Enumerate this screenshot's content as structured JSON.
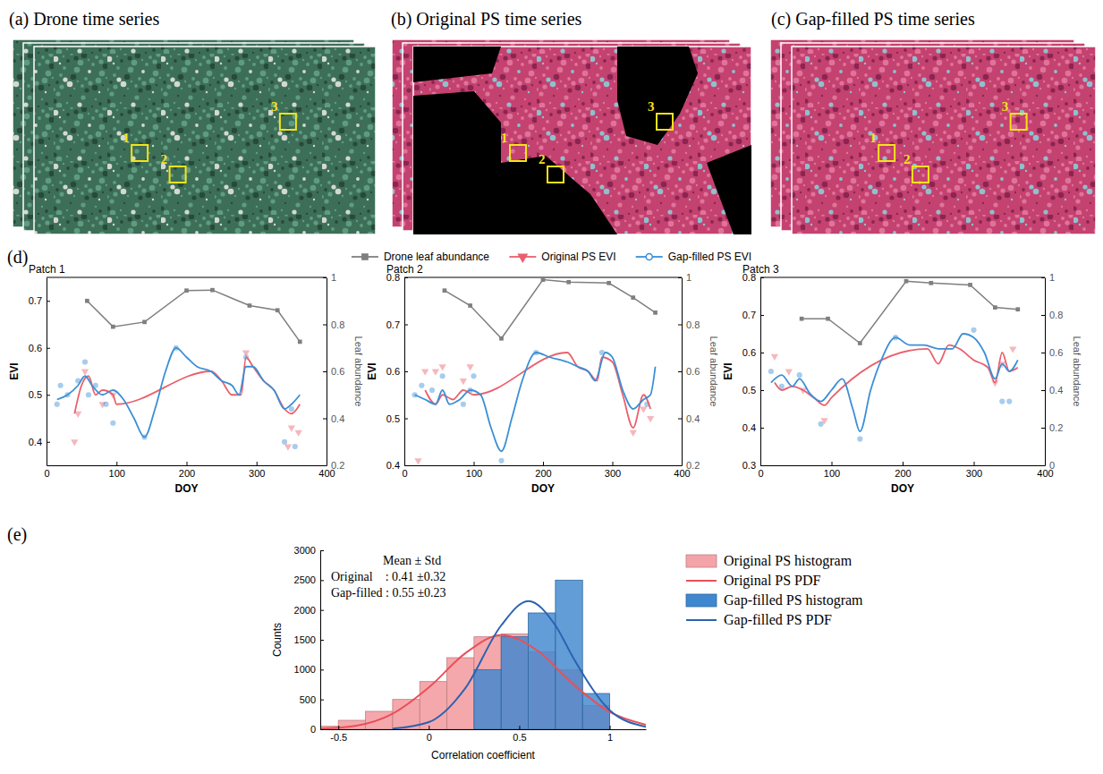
{
  "figure": {
    "images": [
      {
        "title": "(a) Drone time series",
        "patches": [
          "1",
          "2",
          "3"
        ]
      },
      {
        "title": "(b) Original PS time series",
        "patches": [
          "1",
          "2",
          "3"
        ]
      },
      {
        "title": "(c) Gap-filled PS time series",
        "patches": [
          "1",
          "2",
          "3"
        ]
      }
    ],
    "labels": [
      "(d)",
      "(e)"
    ]
  },
  "chart_data": [
    {
      "type": "line",
      "title": "Patch 1",
      "x_label": "DOY",
      "y_label": "EVI",
      "y2_label": "Leaf abundance",
      "xlim": [
        0,
        400
      ],
      "xticks": [
        0,
        100,
        200,
        300,
        400
      ],
      "ylim": [
        0.35,
        0.75
      ],
      "yticks": [
        0.4,
        0.5,
        0.6,
        0.7
      ],
      "y2lim": [
        0.2,
        1
      ],
      "y2ticks": [
        0.2,
        0.4,
        0.6,
        0.8,
        1
      ],
      "legend": "top",
      "series": [
        {
          "name": "Drone leaf abundance",
          "color": "#7f7f7f",
          "marker": "square",
          "axis": "y2",
          "x": [
            58,
            95,
            140,
            200,
            237,
            290,
            330,
            362
          ],
          "values": [
            0.9,
            0.79,
            0.81,
            0.944,
            0.946,
            0.88,
            0.86,
            0.726
          ]
        },
        {
          "name": "Original PS EVI",
          "color": "#e9606c",
          "marker": "triangle-down",
          "x": [
            40,
            50,
            60,
            70,
            80,
            95,
            100,
            235,
            250,
            265,
            278,
            285,
            295,
            310,
            325,
            340,
            350,
            362
          ],
          "values": [
            0.46,
            0.52,
            0.54,
            0.5,
            0.51,
            0.5,
            0.48,
            0.55,
            0.53,
            0.5,
            0.5,
            0.58,
            0.56,
            0.53,
            0.51,
            0.47,
            0.46,
            0.48
          ],
          "points": {
            "x": [
              40,
              45,
              55,
              80,
              95,
              285,
              345,
              350,
              360
            ],
            "values": [
              0.4,
              0.46,
              0.55,
              0.48,
              0.5,
              0.59,
              0.39,
              0.43,
              0.42
            ]
          }
        },
        {
          "name": "Gap-filled PS EVI",
          "color": "#3b8fd6",
          "marker": "circle",
          "x": [
            15,
            30,
            45,
            55,
            65,
            80,
            95,
            110,
            125,
            140,
            155,
            170,
            185,
            200,
            215,
            235,
            250,
            265,
            275,
            285,
            295,
            310,
            325,
            340,
            350,
            362
          ],
          "values": [
            0.49,
            0.5,
            0.52,
            0.54,
            0.52,
            0.5,
            0.51,
            0.49,
            0.45,
            0.41,
            0.47,
            0.55,
            0.6,
            0.58,
            0.56,
            0.55,
            0.53,
            0.52,
            0.5,
            0.56,
            0.56,
            0.53,
            0.51,
            0.47,
            0.48,
            0.5
          ],
          "points": {
            "x": [
              15,
              20,
              30,
              45,
              55,
              60,
              70,
              85,
              95,
              140,
              185,
              285,
              340,
              350,
              355
            ],
            "values": [
              0.48,
              0.52,
              0.5,
              0.53,
              0.57,
              0.5,
              0.52,
              0.48,
              0.44,
              0.41,
              0.6,
              0.58,
              0.4,
              0.47,
              0.39
            ]
          }
        }
      ]
    },
    {
      "type": "line",
      "title": "Patch 2",
      "x_label": "DOY",
      "y_label": "EVI",
      "y2_label": "Leaf abundance",
      "xlim": [
        0,
        400
      ],
      "xticks": [
        0,
        100,
        200,
        300,
        400
      ],
      "ylim": [
        0.4,
        0.8
      ],
      "yticks": [
        0.4,
        0.5,
        0.6,
        0.7,
        0.8
      ],
      "y2lim": [
        0.2,
        1
      ],
      "y2ticks": [
        0.2,
        0.4,
        0.6,
        0.8,
        1
      ],
      "series": [
        {
          "color": "#7f7f7f",
          "marker": "square",
          "axis": "y2",
          "x": [
            58,
            95,
            140,
            200,
            237,
            295,
            330,
            362
          ],
          "values": [
            0.944,
            0.88,
            0.74,
            0.99,
            0.98,
            0.976,
            0.914,
            0.85
          ]
        },
        {
          "color": "#e9606c",
          "marker": "triangle-down",
          "x": [
            30,
            45,
            55,
            70,
            85,
            100,
            235,
            250,
            265,
            278,
            285,
            300,
            315,
            330,
            345,
            355
          ],
          "values": [
            0.56,
            0.53,
            0.55,
            0.54,
            0.56,
            0.55,
            0.64,
            0.61,
            0.6,
            0.58,
            0.63,
            0.62,
            0.55,
            0.48,
            0.55,
            0.52
          ],
          "points": {
            "x": [
              20,
              30,
              45,
              55,
              85,
              95,
              330,
              345,
              355
            ],
            "values": [
              0.41,
              0.6,
              0.6,
              0.61,
              0.58,
              0.61,
              0.47,
              0.52,
              0.5
            ]
          }
        },
        {
          "color": "#3b8fd6",
          "marker": "circle",
          "x": [
            15,
            30,
            45,
            55,
            65,
            80,
            95,
            110,
            125,
            140,
            155,
            170,
            190,
            210,
            235,
            250,
            265,
            275,
            290,
            300,
            315,
            330,
            345,
            355,
            362
          ],
          "values": [
            0.55,
            0.54,
            0.53,
            0.56,
            0.53,
            0.54,
            0.56,
            0.55,
            0.48,
            0.43,
            0.5,
            0.58,
            0.64,
            0.63,
            0.62,
            0.61,
            0.6,
            0.58,
            0.64,
            0.63,
            0.56,
            0.52,
            0.54,
            0.55,
            0.61
          ],
          "points": {
            "x": [
              15,
              25,
              40,
              55,
              85,
              95,
              100,
              140,
              190,
              285,
              350
            ],
            "values": [
              0.55,
              0.57,
              0.56,
              0.59,
              0.53,
              0.56,
              0.59,
              0.41,
              0.64,
              0.64,
              0.53
            ]
          }
        }
      ]
    },
    {
      "type": "line",
      "title": "Patch 3",
      "x_label": "DOY",
      "y_label": "EVI",
      "y2_label": "Leaf abundance",
      "xlim": [
        0,
        400
      ],
      "xticks": [
        0,
        100,
        200,
        300,
        400
      ],
      "ylim": [
        0.3,
        0.8
      ],
      "yticks": [
        0.3,
        0.4,
        0.5,
        0.6,
        0.7,
        0.8
      ],
      "y2lim": [
        0,
        1
      ],
      "y2ticks": [
        0,
        0.2,
        0.4,
        0.6,
        0.8,
        1
      ],
      "series": [
        {
          "color": "#7f7f7f",
          "marker": "square",
          "axis": "y2",
          "x": [
            58,
            95,
            140,
            205,
            240,
            295,
            330,
            362
          ],
          "values": [
            0.78,
            0.78,
            0.65,
            0.98,
            0.97,
            0.96,
            0.84,
            0.83
          ]
        },
        {
          "color": "#e9606c",
          "marker": "triangle-down",
          "x": [
            20,
            30,
            45,
            60,
            75,
            90,
            100,
            235,
            250,
            265,
            280,
            300,
            320,
            330,
            340,
            350,
            362
          ],
          "values": [
            0.52,
            0.5,
            0.51,
            0.5,
            0.48,
            0.46,
            0.48,
            0.61,
            0.57,
            0.62,
            0.61,
            0.58,
            0.56,
            0.52,
            0.6,
            0.55,
            0.56
          ],
          "points": {
            "x": [
              20,
              40,
              60,
              90,
              330,
              340,
              355
            ],
            "values": [
              0.59,
              0.55,
              0.5,
              0.42,
              0.52,
              0.57,
              0.61
            ]
          }
        },
        {
          "color": "#3b8fd6",
          "marker": "circle",
          "x": [
            15,
            30,
            45,
            55,
            70,
            85,
            100,
            115,
            130,
            140,
            155,
            170,
            190,
            210,
            230,
            250,
            270,
            285,
            300,
            315,
            330,
            340,
            350,
            362
          ],
          "values": [
            0.52,
            0.54,
            0.51,
            0.53,
            0.49,
            0.47,
            0.5,
            0.53,
            0.45,
            0.39,
            0.5,
            0.58,
            0.64,
            0.62,
            0.62,
            0.61,
            0.61,
            0.65,
            0.64,
            0.6,
            0.53,
            0.57,
            0.55,
            0.58
          ],
          "points": {
            "x": [
              15,
              30,
              55,
              85,
              140,
              190,
              300,
              340,
              350
            ],
            "values": [
              0.55,
              0.51,
              0.54,
              0.41,
              0.37,
              0.64,
              0.66,
              0.47,
              0.47
            ]
          }
        }
      ]
    },
    {
      "type": "histogram",
      "x_label": "Correlation coefficient",
      "y_label": "Counts",
      "xlim": [
        -0.6,
        1.2
      ],
      "xticks": [
        -0.5,
        0,
        0.5,
        1
      ],
      "ylim": [
        0,
        3000
      ],
      "yticks": [
        0,
        500,
        1000,
        1500,
        2000,
        2500,
        3000
      ],
      "bins": [
        -0.65,
        -0.5,
        -0.35,
        -0.2,
        -0.05,
        0.1,
        0.25,
        0.4,
        0.55,
        0.7,
        0.85,
        1.0
      ],
      "legend": "right",
      "annotations": [
        "Mean ± Std",
        "Original    : 0.41 ±0.32",
        "Gap-filled : 0.55 ±0.23"
      ],
      "series": [
        {
          "name": "Original PS histogram",
          "type": "bar",
          "color": "#f4a3a8",
          "values": [
            50,
            150,
            300,
            500,
            800,
            1200,
            1550,
            1600,
            1300,
            1000,
            400
          ]
        },
        {
          "name": "Original PS PDF",
          "type": "line",
          "color": "#e8505a",
          "x": [
            -0.6,
            -0.4,
            -0.2,
            0,
            0.2,
            0.4,
            0.6,
            0.8,
            1,
            1.2
          ],
          "values": [
            10,
            60,
            260,
            700,
            1270,
            1580,
            1320,
            750,
            290,
            75
          ]
        },
        {
          "name": "Gap-filled PS histogram",
          "type": "bar",
          "color": "#3f88cf",
          "values": [
            0,
            0,
            0,
            0,
            0,
            0,
            1000,
            1550,
            1950,
            2500,
            600
          ]
        },
        {
          "name": "Gap-filled PS PDF",
          "type": "line",
          "color": "#2a63b0",
          "x": [
            -0.2,
            0,
            0.2,
            0.4,
            0.55,
            0.7,
            0.8,
            1,
            1.2
          ],
          "values": [
            10,
            120,
            680,
            1740,
            2150,
            1740,
            1190,
            320,
            40
          ]
        }
      ]
    }
  ]
}
